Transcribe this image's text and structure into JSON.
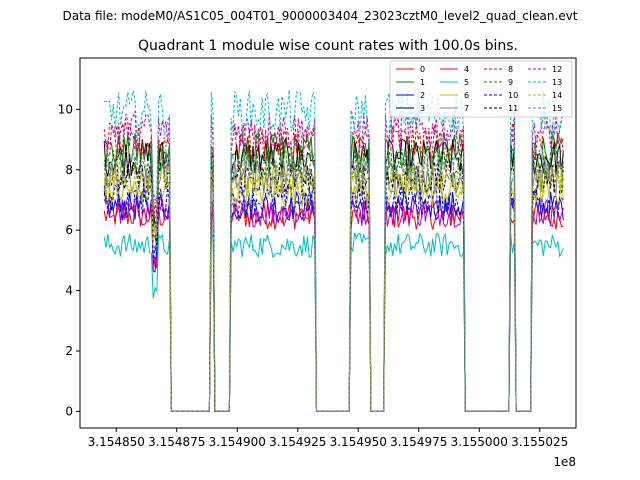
{
  "chart_data": {
    "type": "line",
    "suptitle": "Data file: modeM0/AS1C05_004T01_9000003404_23023cztM0_level2_quad_clean.evt",
    "title": "Quadrant 1 module wise count rates with 100.0s bins.",
    "xlabel": "",
    "ylabel": "",
    "x_offset_label": "1e8",
    "xlim": [
      3.154835,
      3.15504
    ],
    "ylim": [
      -0.55,
      11.7
    ],
    "xticks": [
      3.15485,
      3.154875,
      3.1549,
      3.154925,
      3.15495,
      3.154975,
      3.155,
      3.155025
    ],
    "xtick_labels": [
      "3.154850",
      "3.154875",
      "3.154900",
      "3.154925",
      "3.154950",
      "3.154975",
      "3.155000",
      "3.155025"
    ],
    "yticks": [
      0,
      2,
      4,
      6,
      8,
      10
    ],
    "ytick_labels": [
      "0",
      "2",
      "4",
      "6",
      "8",
      "10"
    ],
    "legend_position": "top-right",
    "legend_columns": 4,
    "gaps": [
      [
        3.154873,
        3.154888
      ],
      [
        3.154891,
        3.154896
      ],
      [
        3.154933,
        3.154946
      ],
      [
        3.154956,
        3.15496
      ],
      [
        3.154995,
        3.155012
      ],
      [
        3.155016,
        3.155021
      ]
    ],
    "active_segments": [
      [
        3.154845,
        3.154872
      ],
      [
        3.154889,
        3.15489
      ],
      [
        3.154897,
        3.154932
      ],
      [
        3.154947,
        3.154955
      ],
      [
        3.154961,
        3.154994
      ],
      [
        3.155013,
        3.155015
      ],
      [
        3.155022,
        3.155035
      ]
    ],
    "series": [
      {
        "name": "0",
        "color": "#ff0000",
        "dash": "solid",
        "level": 6.5
      },
      {
        "name": "1",
        "color": "#008000",
        "dash": "solid",
        "level": 8.6
      },
      {
        "name": "2",
        "color": "#0000ff",
        "dash": "solid",
        "level": 6.8
      },
      {
        "name": "3",
        "color": "#000000",
        "dash": "solid",
        "level": 8.4
      },
      {
        "name": "4",
        "color": "#bf00bf",
        "dash": "solid",
        "level": 6.6
      },
      {
        "name": "5",
        "color": "#00bfbf",
        "dash": "solid",
        "level": 5.5
      },
      {
        "name": "6",
        "color": "#bfbf00",
        "dash": "solid",
        "level": 7.3
      },
      {
        "name": "7",
        "color": "#808080",
        "dash": "solid",
        "level": 7.8
      },
      {
        "name": "8",
        "color": "#ff0000",
        "dash": "dashed",
        "level": 8.9
      },
      {
        "name": "9",
        "color": "#008000",
        "dash": "dashed",
        "level": 8.2
      },
      {
        "name": "10",
        "color": "#0000ff",
        "dash": "dashed",
        "level": 7.0
      },
      {
        "name": "11",
        "color": "#000000",
        "dash": "dashed",
        "level": 7.7
      },
      {
        "name": "12",
        "color": "#bf00bf",
        "dash": "dashed",
        "level": 9.3
      },
      {
        "name": "13",
        "color": "#00bfbf",
        "dash": "dashed",
        "level": 9.9
      },
      {
        "name": "14",
        "color": "#bfbf00",
        "dash": "dashed",
        "level": 7.6
      },
      {
        "name": "15",
        "color": "#808080",
        "dash": "dashed",
        "level": 8.1
      }
    ]
  }
}
